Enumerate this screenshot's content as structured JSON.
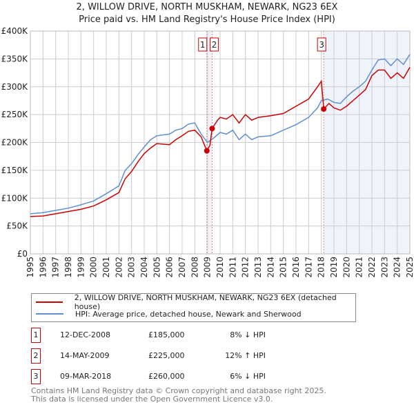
{
  "title_line1": "2, WILLOW DRIVE, NORTH MUSKHAM, NEWARK, NG23 6EX",
  "title_line2": "Price paid vs. HM Land Registry's House Price Index (HPI)",
  "chart_data": {
    "type": "line",
    "ylim": [
      0,
      400000
    ],
    "xlim": [
      1995,
      2025
    ],
    "yticks": [
      {
        "v": 0,
        "label": "£0"
      },
      {
        "v": 50000,
        "label": "£50K"
      },
      {
        "v": 100000,
        "label": "£100K"
      },
      {
        "v": 150000,
        "label": "£150K"
      },
      {
        "v": 200000,
        "label": "£200K"
      },
      {
        "v": 250000,
        "label": "£250K"
      },
      {
        "v": 300000,
        "label": "£300K"
      },
      {
        "v": 350000,
        "label": "£350K"
      },
      {
        "v": 400000,
        "label": "£400K"
      }
    ],
    "xticks": [
      "1995",
      "1996",
      "1997",
      "1998",
      "1999",
      "2000",
      "2001",
      "2002",
      "2003",
      "2004",
      "2005",
      "2006",
      "2007",
      "2008",
      "2009",
      "2010",
      "2011",
      "2012",
      "2013",
      "2014",
      "2015",
      "2016",
      "2017",
      "2018",
      "2019",
      "2020",
      "2021",
      "2022",
      "2023",
      "2024",
      "2025"
    ],
    "grid": true,
    "series": [
      {
        "name": "2, WILLOW DRIVE, NORTH MUSKHAM, NEWARK, NG23 6EX (detached house)",
        "color": "#cc0000",
        "x": [
          1995,
          1996,
          1997,
          1998,
          1999,
          2000,
          2001,
          2002,
          2002.5,
          2003,
          2003.5,
          2004,
          2004.5,
          2005,
          2006,
          2006.5,
          2007,
          2007.5,
          2008,
          2008.5,
          2008.95,
          2009.2,
          2009.37,
          2009.8,
          2010,
          2010.5,
          2011,
          2011.5,
          2012,
          2012.5,
          2013,
          2014,
          2015,
          2016,
          2017,
          2017.7,
          2018,
          2018.19,
          2018.6,
          2019,
          2019.5,
          2020,
          2020.5,
          2021,
          2021.5,
          2022,
          2022.5,
          2023,
          2023.5,
          2024,
          2024.5,
          2025
        ],
        "y": [
          67000,
          68000,
          72000,
          76000,
          80000,
          86000,
          97000,
          110000,
          135000,
          148000,
          165000,
          180000,
          190000,
          198000,
          196000,
          205000,
          212000,
          220000,
          222000,
          210000,
          185000,
          195000,
          225000,
          240000,
          245000,
          242000,
          250000,
          235000,
          250000,
          240000,
          245000,
          248000,
          252000,
          265000,
          278000,
          300000,
          310000,
          260000,
          270000,
          262000,
          258000,
          265000,
          275000,
          285000,
          295000,
          320000,
          330000,
          330000,
          315000,
          325000,
          315000,
          335000
        ]
      },
      {
        "name": "HPI: Average price, detached house, Newark and Sherwood",
        "color": "#5f8fd0",
        "x": [
          1995,
          1996,
          1997,
          1998,
          1999,
          2000,
          2001,
          2002,
          2002.5,
          2003,
          2003.5,
          2004,
          2004.5,
          2005,
          2006,
          2006.5,
          2007,
          2007.5,
          2008,
          2008.5,
          2009,
          2009.5,
          2010,
          2010.5,
          2011,
          2011.5,
          2012,
          2012.5,
          2013,
          2014,
          2015,
          2016,
          2017,
          2017.7,
          2018,
          2018.5,
          2019,
          2019.5,
          2020,
          2020.5,
          2021,
          2021.5,
          2022,
          2022.5,
          2023,
          2023.5,
          2024,
          2024.5,
          2025
        ],
        "y": [
          72000,
          74000,
          78000,
          82000,
          88000,
          95000,
          108000,
          122000,
          150000,
          162000,
          178000,
          192000,
          205000,
          212000,
          215000,
          222000,
          225000,
          233000,
          235000,
          215000,
          200000,
          208000,
          218000,
          215000,
          222000,
          205000,
          215000,
          205000,
          210000,
          212000,
          222000,
          232000,
          245000,
          262000,
          275000,
          278000,
          272000,
          270000,
          282000,
          292000,
          300000,
          310000,
          330000,
          348000,
          350000,
          338000,
          350000,
          340000,
          358000
        ]
      }
    ],
    "sales": [
      {
        "n": "1",
        "x": 2008.95,
        "y": 185000
      },
      {
        "n": "2",
        "x": 2009.37,
        "y": 225000
      },
      {
        "n": "3",
        "x": 2018.19,
        "y": 260000
      }
    ],
    "forecast_shade_from": 2018.19
  },
  "legend": {
    "red": "2, WILLOW DRIVE, NORTH MUSKHAM, NEWARK, NG23 6EX (detached house)",
    "blue": "HPI: Average price, detached house, Newark and Sherwood"
  },
  "sales_table": [
    {
      "n": "1",
      "date": "12-DEC-2008",
      "price": "£185,000",
      "hpi": "8% ↓ HPI"
    },
    {
      "n": "2",
      "date": "14-MAY-2009",
      "price": "£225,000",
      "hpi": "12% ↑ HPI"
    },
    {
      "n": "3",
      "date": "09-MAR-2018",
      "price": "£260,000",
      "hpi": "6% ↓ HPI"
    }
  ],
  "footer1": "Contains HM Land Registry data © Crown copyright and database right 2025.",
  "footer2": "This data is licensed under the Open Government Licence v3.0."
}
